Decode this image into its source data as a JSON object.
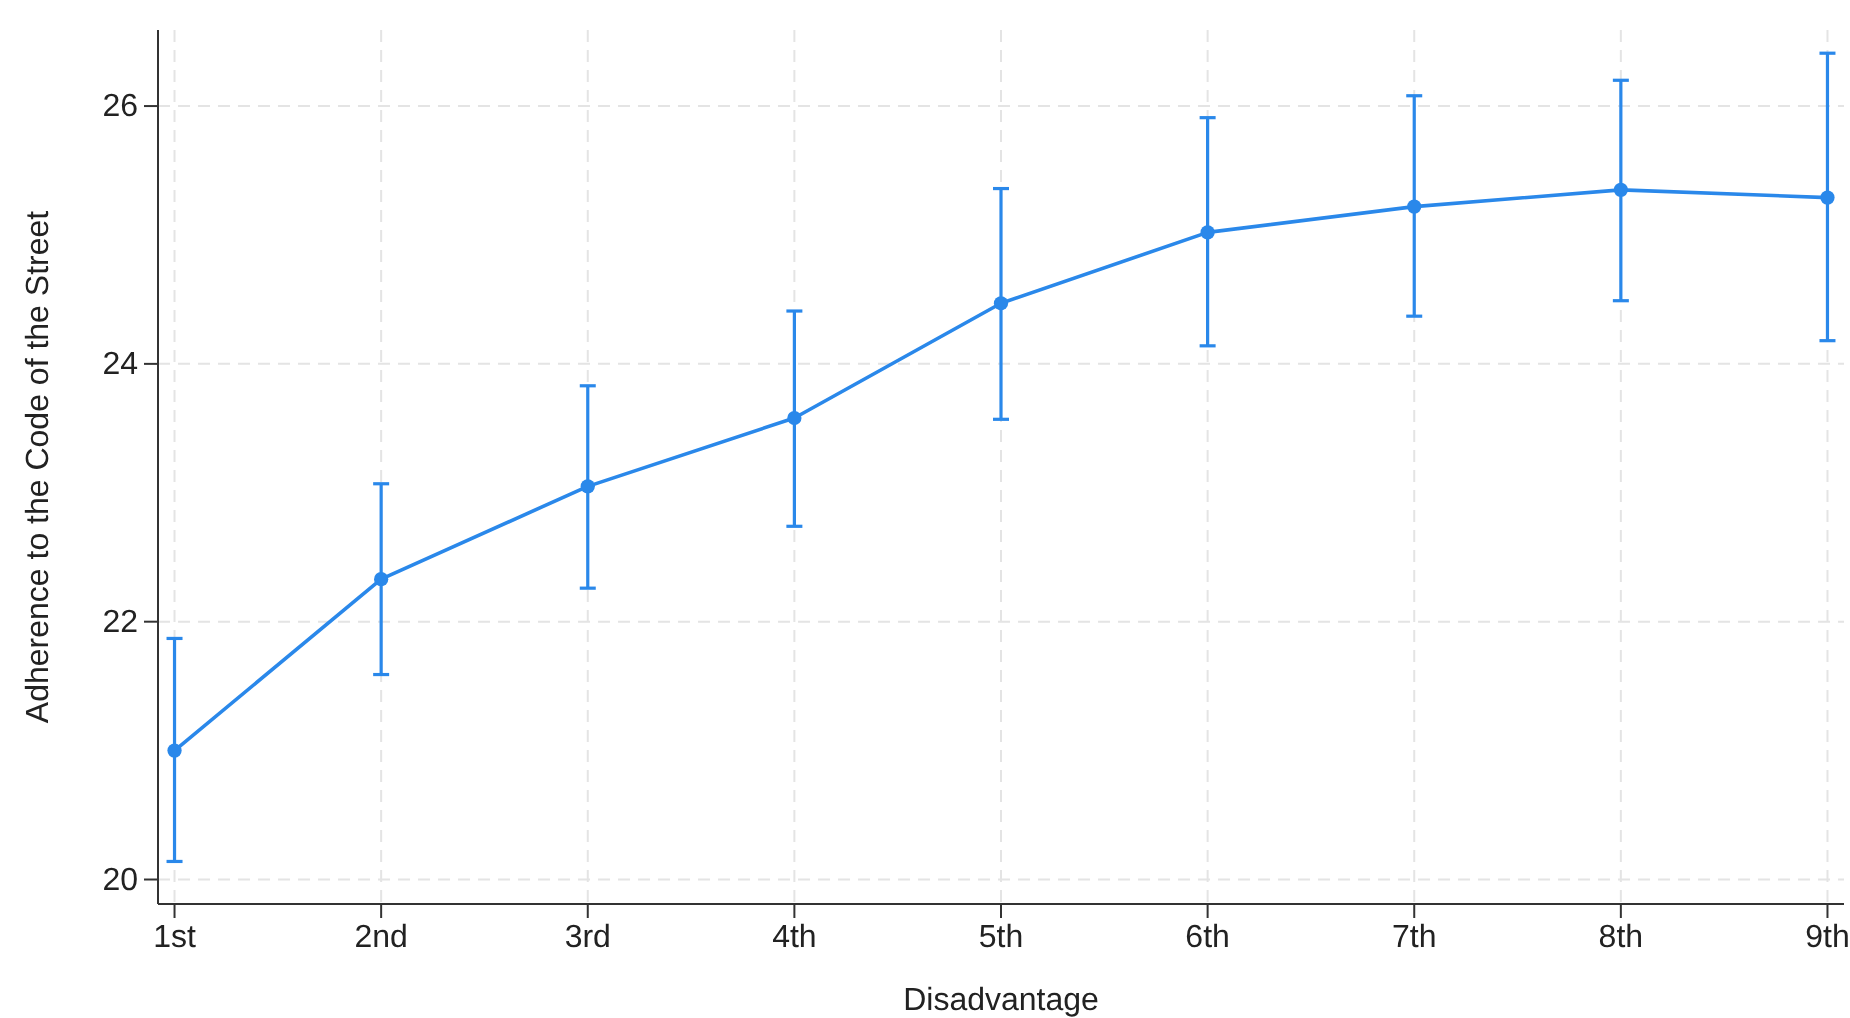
{
  "chart_data": {
    "type": "line",
    "xlabel": "Disadvantage",
    "ylabel": "Adherence to the Code of the Street",
    "categories": [
      "1st",
      "2nd",
      "3rd",
      "4th",
      "5th",
      "6th",
      "7th",
      "8th",
      "9th"
    ],
    "series": [
      {
        "color": "#2a88ea",
        "values": [
          21.0,
          22.33,
          23.05,
          23.58,
          24.47,
          25.02,
          25.22,
          25.35,
          25.29
        ],
        "errors": [
          [
            20.14,
            21.87
          ],
          [
            21.59,
            23.07
          ],
          [
            22.26,
            23.83
          ],
          [
            22.74,
            24.41
          ],
          [
            23.57,
            25.36
          ],
          [
            24.14,
            25.91
          ],
          [
            24.37,
            26.08
          ],
          [
            24.49,
            26.2
          ],
          [
            24.18,
            26.41
          ]
        ]
      }
    ],
    "ylim": [
      19.81,
      26.59
    ],
    "yticks": [
      20,
      22,
      24,
      26
    ],
    "grid": true,
    "marker": "circle",
    "line_style": "solid"
  }
}
